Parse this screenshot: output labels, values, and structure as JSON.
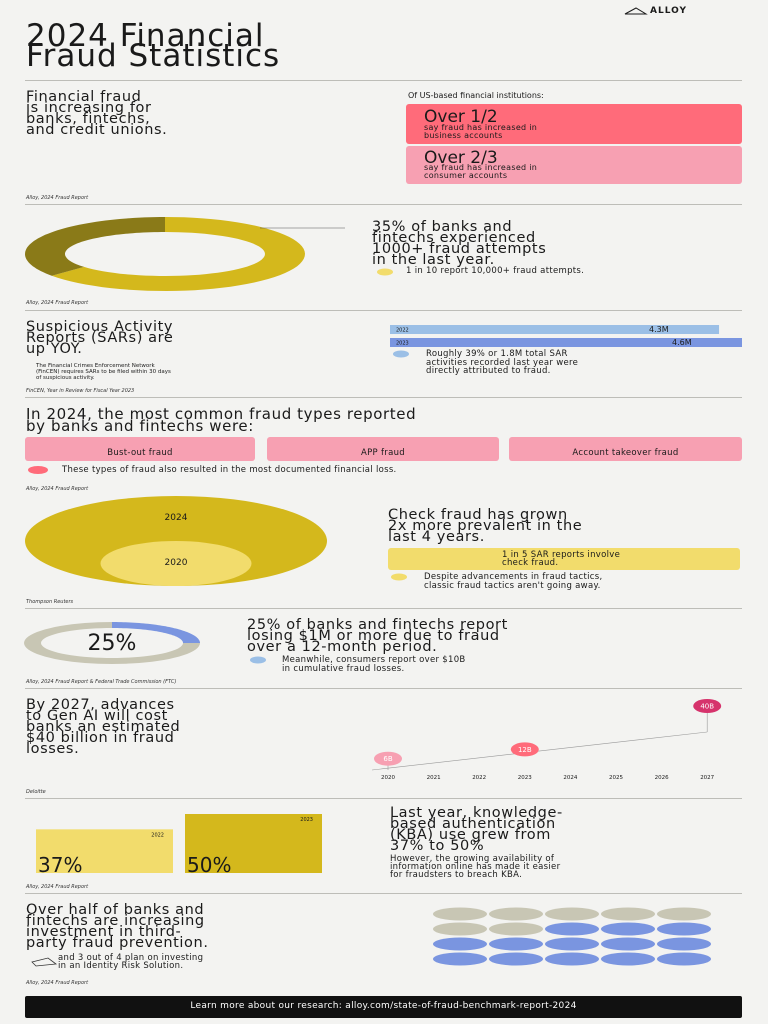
{
  "header": {
    "brand": "ALLOY",
    "title_lines": [
      "2024 Financial",
      "Fraud Statistics"
    ]
  },
  "s1": {
    "headline_lines": [
      "Financial fraud",
      "is increasing for",
      "banks, fintechs,",
      "and credit unions."
    ],
    "intro": "Of US-based financial institutions:",
    "cards": [
      {
        "big": "Over 1/2",
        "text_lines": [
          "say fraud has increased in",
          "business accounts"
        ]
      },
      {
        "big": "Over 2/3",
        "text_lines": [
          "say fraud has increased in",
          "consumer accounts"
        ]
      }
    ],
    "source": "Alloy, 2024 Fraud Report"
  },
  "s2": {
    "headline_lines": [
      "35% of banks and",
      "fintechs experienced",
      "1000+ fraud attempts",
      "in the last year."
    ],
    "note": "1 in 10 report 10,000+ fraud attempts.",
    "chart": {
      "type": "donut",
      "value": 35
    },
    "source": "Alloy, 2024 Fraud Report"
  },
  "s3": {
    "headline_lines": [
      "Suspicious Activity",
      "Reports (SARs) are",
      "up YOY."
    ],
    "footnote_lines": [
      "The Financial Crimes Enforcement Network",
      "(FinCEN) requires SARs to be filed within 30 days",
      "of suspicious activity."
    ],
    "chart": {
      "type": "bar",
      "categories": [
        "2022",
        "2023"
      ],
      "values": [
        4300000,
        4600000
      ],
      "value_labels": [
        "4.3M",
        "4.6M"
      ]
    },
    "note_lines": [
      "Roughly 39% or 1.8M total SAR",
      "activities recorded last year were",
      "directly attributed to fraud."
    ],
    "source": "FinCEN, Year in Review for Fiscal Year 2023"
  },
  "s4": {
    "headline_lines": [
      "In 2024, the most common fraud types reported",
      "by banks and fintechs were:"
    ],
    "types": [
      "Bust-out fraud",
      "APP fraud",
      "Account takeover fraud"
    ],
    "note": "These types of fraud also resulted in the most documented financial loss.",
    "source": "Alloy, 2024 Fraud Report"
  },
  "s5": {
    "chart": {
      "type": "bubble",
      "categories": [
        "2024",
        "2020"
      ],
      "values": [
        2,
        1
      ]
    },
    "headline_lines": [
      "Check fraud has grown",
      "2x more prevalent in the",
      "last 4 years."
    ],
    "box_lines": [
      "1 in 5 SAR reports involve",
      "check fraud."
    ],
    "note_lines": [
      "Despite advancements in fraud tactics,",
      "classic fraud tactics aren't going away."
    ],
    "source": "Thompson Reuters"
  },
  "s6": {
    "chart": {
      "type": "donut",
      "value": 25,
      "value_label": "25%"
    },
    "headline_lines": [
      "25% of banks and fintechs report",
      "losing $1M or more due to fraud",
      "over a 12-month period."
    ],
    "note_lines": [
      "Meanwhile, consumers report over $10B",
      "in cumulative fraud losses."
    ],
    "source": "Alloy, 2024 Fraud Report & Federal Trade Commission (FTC)"
  },
  "s7": {
    "headline_lines": [
      "By 2027, advances",
      "to Gen AI will cost",
      "banks an estimated",
      "$40 billion in fraud",
      "losses."
    ],
    "chart": {
      "type": "line",
      "categories": [
        "2020",
        "2021",
        "2022",
        "2023",
        "2024",
        "2025",
        "2026",
        "2027"
      ],
      "values": [
        6000000000,
        null,
        null,
        12000000000,
        null,
        null,
        null,
        40000000000
      ],
      "value_labels": [
        "6B",
        null,
        null,
        "12B",
        null,
        null,
        null,
        "40B"
      ]
    },
    "source": "Deloitte"
  },
  "s8": {
    "chart": {
      "type": "bar",
      "categories": [
        "2022",
        "2023"
      ],
      "values": [
        37,
        50
      ],
      "value_labels": [
        "37%",
        "50%"
      ]
    },
    "headline_lines": [
      "Last year, knowledge-",
      "based authentication",
      "(KBA) use grew from",
      "37% to 50%"
    ],
    "note_lines": [
      "However, the growing availability of",
      "information online has made it easier",
      "for fraudsters to breach KBA."
    ],
    "source": "Alloy, 2024 Fraud Report"
  },
  "s9": {
    "headline_lines": [
      "Over half of banks and",
      "fintechs are increasing",
      "investment in third-",
      "party fraud prevention."
    ],
    "note_lines": [
      "and 3 out of 4 plan on investing",
      "in an Identity Risk Solution."
    ],
    "chart": {
      "type": "dots",
      "total": 20,
      "highlighted": 13
    },
    "source": "Alloy, 2024 Fraud Report"
  },
  "footer": {
    "text": "Learn more about our research: alloy.com/state-of-fraud-benchmark-report-2024"
  }
}
